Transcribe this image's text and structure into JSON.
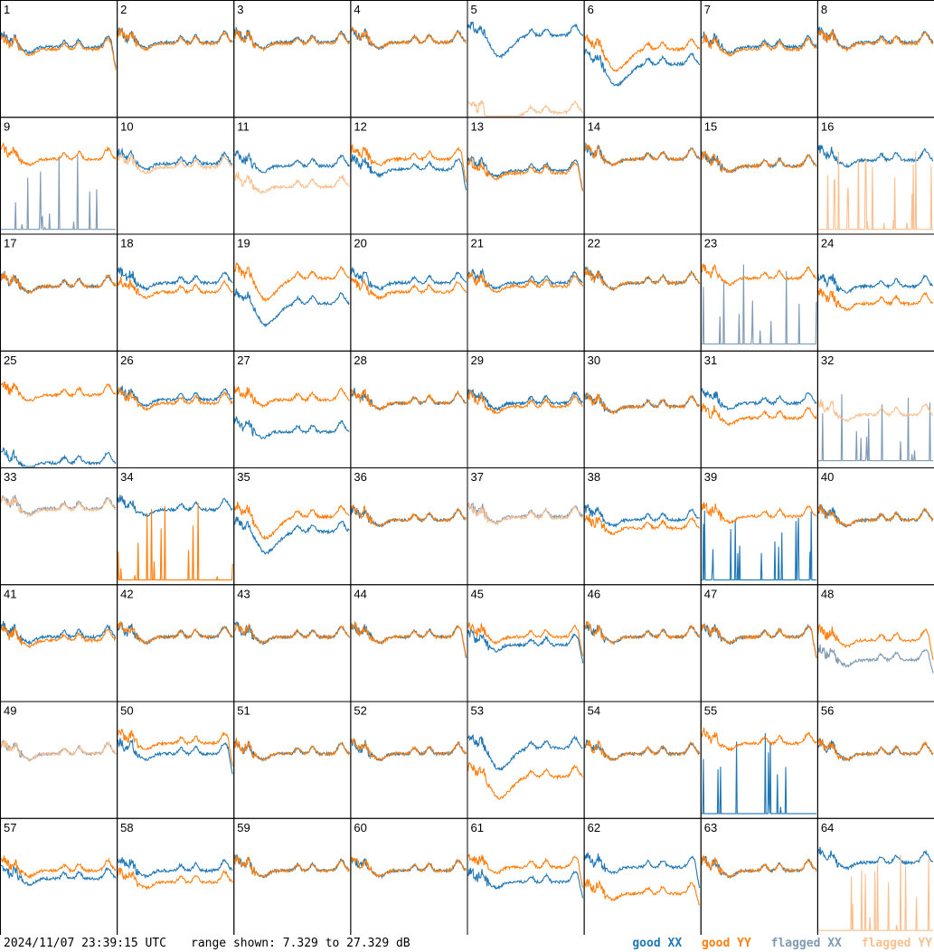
{
  "footer": {
    "timestamp": "2024/11/07 23:39:15 UTC",
    "range_text": "range shown: 7.329 to 27.329 dB"
  },
  "legend": [
    {
      "label": "good XX",
      "color": "#1f77b4"
    },
    {
      "label": "good YY",
      "color": "#ff7f0e"
    },
    {
      "label": "flagged XX",
      "color": "#7f9ab5"
    },
    {
      "label": "flagged YY",
      "color": "#f9c08f"
    }
  ],
  "chart_data": {
    "type": "line",
    "grid": {
      "rows": 8,
      "cols": 8
    },
    "y_range_db": [
      7.329,
      27.329
    ],
    "series_names": [
      "good XX",
      "good YY",
      "flagged XX",
      "flagged YY"
    ],
    "colors": {
      "good_xx": "#1f77b4",
      "good_yy": "#ff7f0e",
      "flagged_xx": "#7f9ab5",
      "flagged_yy": "#f9c08f"
    },
    "panels": [
      {
        "id": "1",
        "xx": "good",
        "yy": "good",
        "xx_level": 0.6,
        "yy_level": 0.58,
        "variant": "dropend"
      },
      {
        "id": "2",
        "xx": "good",
        "yy": "good",
        "xx_level": 0.64,
        "yy_level": 0.63,
        "variant": "normal"
      },
      {
        "id": "3",
        "xx": "good",
        "yy": "good",
        "xx_level": 0.64,
        "yy_level": 0.63,
        "variant": "normal"
      },
      {
        "id": "4",
        "xx": "good",
        "yy": "good",
        "xx_level": 0.64,
        "yy_level": 0.64,
        "variant": "normal"
      },
      {
        "id": "5",
        "xx": "good",
        "yy": "flagged",
        "xx_level": 0.7,
        "yy_level": 0.03,
        "variant": "dip"
      },
      {
        "id": "6",
        "xx": "good",
        "yy": "good",
        "xx_level": 0.45,
        "yy_level": 0.58,
        "variant": "dip"
      },
      {
        "id": "7",
        "xx": "good",
        "yy": "good",
        "xx_level": 0.6,
        "yy_level": 0.58,
        "variant": "normal"
      },
      {
        "id": "8",
        "xx": "good",
        "yy": "good",
        "xx_level": 0.64,
        "yy_level": 0.63,
        "variant": "normal"
      },
      {
        "id": "9",
        "xx": "flagged",
        "yy": "good",
        "xx_level": 0.03,
        "yy_level": 0.64,
        "variant": "spikes"
      },
      {
        "id": "10",
        "xx": "good",
        "yy": "flagged",
        "xx_level": 0.6,
        "yy_level": 0.57,
        "variant": "normal"
      },
      {
        "id": "11",
        "xx": "good",
        "yy": "flagged",
        "xx_level": 0.58,
        "yy_level": 0.4,
        "variant": "normal"
      },
      {
        "id": "12",
        "xx": "good",
        "yy": "good",
        "xx_level": 0.55,
        "yy_level": 0.64,
        "variant": "dropend"
      },
      {
        "id": "13",
        "xx": "good",
        "yy": "good",
        "xx_level": 0.54,
        "yy_level": 0.52,
        "variant": "dropend"
      },
      {
        "id": "14",
        "xx": "good",
        "yy": "good",
        "xx_level": 0.64,
        "yy_level": 0.64,
        "variant": "normal"
      },
      {
        "id": "15",
        "xx": "good",
        "yy": "good",
        "xx_level": 0.58,
        "yy_level": 0.58,
        "variant": "normal"
      },
      {
        "id": "16",
        "xx": "good",
        "yy": "flagged",
        "xx_level": 0.63,
        "yy_level": 0.03,
        "variant": "spikes"
      },
      {
        "id": "17",
        "xx": "good",
        "yy": "good",
        "xx_level": 0.55,
        "yy_level": 0.55,
        "variant": "normal"
      },
      {
        "id": "18",
        "xx": "good",
        "yy": "good",
        "xx_level": 0.58,
        "yy_level": 0.5,
        "variant": "normal"
      },
      {
        "id": "19",
        "xx": "good",
        "yy": "good",
        "xx_level": 0.4,
        "yy_level": 0.62,
        "variant": "dip"
      },
      {
        "id": "20",
        "xx": "good",
        "yy": "good",
        "xx_level": 0.58,
        "yy_level": 0.5,
        "variant": "normal"
      },
      {
        "id": "21",
        "xx": "good",
        "yy": "good",
        "xx_level": 0.58,
        "yy_level": 0.55,
        "variant": "normal"
      },
      {
        "id": "22",
        "xx": "good",
        "yy": "good",
        "xx_level": 0.58,
        "yy_level": 0.58,
        "variant": "normal"
      },
      {
        "id": "23",
        "xx": "flagged",
        "yy": "good",
        "xx_level": 0.05,
        "yy_level": 0.62,
        "variant": "spikes"
      },
      {
        "id": "24",
        "xx": "good",
        "yy": "good",
        "xx_level": 0.55,
        "yy_level": 0.4,
        "variant": "normal"
      },
      {
        "id": "25",
        "xx": "good",
        "yy": "good",
        "xx_level": 0.03,
        "yy_level": 0.62,
        "variant": "normal"
      },
      {
        "id": "26",
        "xx": "good",
        "yy": "good",
        "xx_level": 0.58,
        "yy_level": 0.55,
        "variant": "normal"
      },
      {
        "id": "27",
        "xx": "good",
        "yy": "good",
        "xx_level": 0.3,
        "yy_level": 0.58,
        "variant": "spikes"
      },
      {
        "id": "28",
        "xx": "good",
        "yy": "good",
        "xx_level": 0.55,
        "yy_level": 0.55,
        "variant": "normal"
      },
      {
        "id": "29",
        "xx": "good",
        "yy": "good",
        "xx_level": 0.55,
        "yy_level": 0.52,
        "variant": "normal"
      },
      {
        "id": "30",
        "xx": "good",
        "yy": "good",
        "xx_level": 0.52,
        "yy_level": 0.52,
        "variant": "normal"
      },
      {
        "id": "31",
        "xx": "good",
        "yy": "good",
        "xx_level": 0.55,
        "yy_level": 0.42,
        "variant": "normal"
      },
      {
        "id": "32",
        "xx": "flagged",
        "yy": "flagged",
        "xx_level": 0.05,
        "yy_level": 0.45,
        "variant": "spikes"
      },
      {
        "id": "33",
        "xx": "flagged",
        "yy": "flagged",
        "xx_level": 0.65,
        "yy_level": 0.64,
        "variant": "normal"
      },
      {
        "id": "34",
        "xx": "good",
        "yy": "good",
        "xx_level": 0.64,
        "yy_level": 0.03,
        "variant": "spikes"
      },
      {
        "id": "35",
        "xx": "good",
        "yy": "good",
        "xx_level": 0.45,
        "yy_level": 0.58,
        "variant": "dip"
      },
      {
        "id": "36",
        "xx": "good",
        "yy": "good",
        "xx_level": 0.55,
        "yy_level": 0.55,
        "variant": "normal"
      },
      {
        "id": "37",
        "xx": "flagged",
        "yy": "flagged",
        "xx_level": 0.58,
        "yy_level": 0.57,
        "variant": "normal"
      },
      {
        "id": "38",
        "xx": "good",
        "yy": "good",
        "xx_level": 0.55,
        "yy_level": 0.48,
        "variant": "normal"
      },
      {
        "id": "39",
        "xx": "good",
        "yy": "good",
        "xx_level": 0.03,
        "yy_level": 0.58,
        "variant": "spikes"
      },
      {
        "id": "40",
        "xx": "good",
        "yy": "good",
        "xx_level": 0.55,
        "yy_level": 0.55,
        "variant": "normal"
      },
      {
        "id": "41",
        "xx": "good",
        "yy": "good",
        "xx_level": 0.55,
        "yy_level": 0.52,
        "variant": "normal"
      },
      {
        "id": "42",
        "xx": "good",
        "yy": "good",
        "xx_level": 0.55,
        "yy_level": 0.55,
        "variant": "normal"
      },
      {
        "id": "43",
        "xx": "good",
        "yy": "good",
        "xx_level": 0.55,
        "yy_level": 0.55,
        "variant": "normal"
      },
      {
        "id": "44",
        "xx": "good",
        "yy": "good",
        "xx_level": 0.55,
        "yy_level": 0.55,
        "variant": "dropend"
      },
      {
        "id": "45",
        "xx": "good",
        "yy": "good",
        "xx_level": 0.48,
        "yy_level": 0.55,
        "variant": "dropend"
      },
      {
        "id": "46",
        "xx": "good",
        "yy": "good",
        "xx_level": 0.55,
        "yy_level": 0.55,
        "variant": "normal"
      },
      {
        "id": "47",
        "xx": "good",
        "yy": "good",
        "xx_level": 0.55,
        "yy_level": 0.55,
        "variant": "dropend"
      },
      {
        "id": "48",
        "xx": "flagged",
        "yy": "good",
        "xx_level": 0.35,
        "yy_level": 0.52,
        "variant": "dropend"
      },
      {
        "id": "49",
        "xx": "flagged",
        "yy": "flagged",
        "xx_level": 0.55,
        "yy_level": 0.55,
        "variant": "normal"
      },
      {
        "id": "50",
        "xx": "good",
        "yy": "good",
        "xx_level": 0.55,
        "yy_level": 0.64,
        "variant": "dropend"
      },
      {
        "id": "51",
        "xx": "good",
        "yy": "good",
        "xx_level": 0.55,
        "yy_level": 0.55,
        "variant": "normal"
      },
      {
        "id": "52",
        "xx": "good",
        "yy": "good",
        "xx_level": 0.55,
        "yy_level": 0.55,
        "variant": "normal"
      },
      {
        "id": "53",
        "xx": "good",
        "yy": "good",
        "xx_level": 0.6,
        "yy_level": 0.35,
        "variant": "dip"
      },
      {
        "id": "54",
        "xx": "good",
        "yy": "good",
        "xx_level": 0.55,
        "yy_level": 0.55,
        "variant": "normal"
      },
      {
        "id": "55",
        "xx": "good",
        "yy": "good",
        "xx_level": 0.03,
        "yy_level": 0.64,
        "variant": "spikes"
      },
      {
        "id": "56",
        "xx": "good",
        "yy": "good",
        "xx_level": 0.55,
        "yy_level": 0.55,
        "variant": "normal"
      },
      {
        "id": "57",
        "xx": "good",
        "yy": "good",
        "xx_level": 0.48,
        "yy_level": 0.55,
        "variant": "normal"
      },
      {
        "id": "58",
        "xx": "good",
        "yy": "good",
        "xx_level": 0.55,
        "yy_level": 0.45,
        "variant": "normal"
      },
      {
        "id": "59",
        "xx": "good",
        "yy": "good",
        "xx_level": 0.55,
        "yy_level": 0.55,
        "variant": "normal"
      },
      {
        "id": "60",
        "xx": "good",
        "yy": "good",
        "xx_level": 0.55,
        "yy_level": 0.55,
        "variant": "normal"
      },
      {
        "id": "61",
        "xx": "good",
        "yy": "good",
        "xx_level": 0.45,
        "yy_level": 0.58,
        "variant": "dropend"
      },
      {
        "id": "62",
        "xx": "good",
        "yy": "good",
        "xx_level": 0.58,
        "yy_level": 0.35,
        "variant": "dropend"
      },
      {
        "id": "63",
        "xx": "good",
        "yy": "good",
        "xx_level": 0.55,
        "yy_level": 0.55,
        "variant": "normal"
      },
      {
        "id": "64",
        "xx": "good",
        "yy": "flagged",
        "xx_level": 0.62,
        "yy_level": 0.03,
        "variant": "spikes"
      }
    ]
  }
}
